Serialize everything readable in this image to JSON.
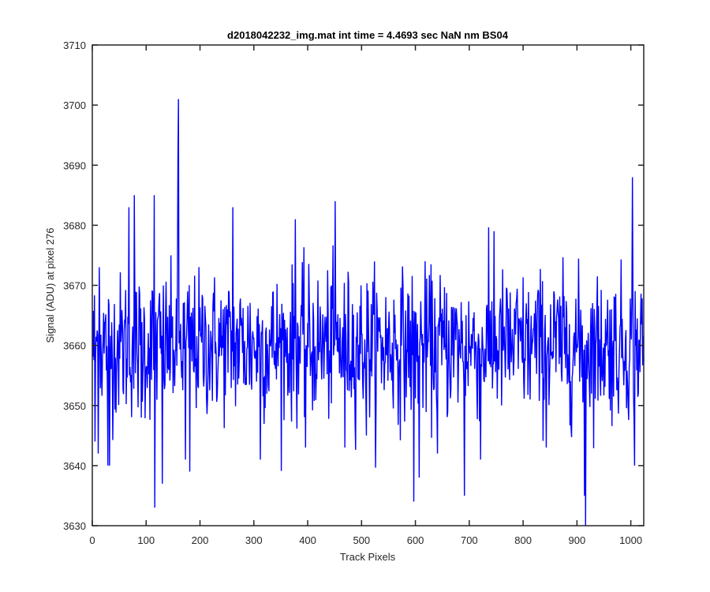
{
  "chart_data": {
    "type": "line",
    "title": "d2018042232_img.mat int time = 4.4693 sec  NaN nm BS04",
    "xlabel": "Track Pixels",
    "ylabel": "Signal (ADU) at pixel 276",
    "xlim": [
      0,
      1024
    ],
    "ylim": [
      3630,
      3710
    ],
    "xticks": [
      0,
      100,
      200,
      300,
      400,
      500,
      600,
      700,
      800,
      900,
      1000
    ],
    "yticks": [
      3630,
      3640,
      3650,
      3660,
      3670,
      3680,
      3690,
      3700,
      3710
    ],
    "grid": false,
    "legend": "none",
    "series": [
      {
        "color": "#0000ff",
        "n_points": 1024,
        "mean": 3660,
        "noise_std": 6,
        "notable_points": [
          {
            "x": 4,
            "y": 3644
          },
          {
            "x": 10,
            "y": 3642
          },
          {
            "x": 12,
            "y": 3673
          },
          {
            "x": 28,
            "y": 3640
          },
          {
            "x": 31,
            "y": 3640
          },
          {
            "x": 67,
            "y": 3683
          },
          {
            "x": 77,
            "y": 3685
          },
          {
            "x": 90,
            "y": 3648
          },
          {
            "x": 114,
            "y": 3685
          },
          {
            "x": 115,
            "y": 3633
          },
          {
            "x": 129,
            "y": 3637
          },
          {
            "x": 158,
            "y": 3691
          },
          {
            "x": 159,
            "y": 3701
          },
          {
            "x": 172,
            "y": 3641
          },
          {
            "x": 180,
            "y": 3639
          },
          {
            "x": 260,
            "y": 3683
          },
          {
            "x": 311,
            "y": 3641
          },
          {
            "x": 376,
            "y": 3681
          },
          {
            "x": 395,
            "y": 3643
          },
          {
            "x": 450,
            "y": 3684
          },
          {
            "x": 468,
            "y": 3643
          },
          {
            "x": 508,
            "y": 3645
          },
          {
            "x": 596,
            "y": 3634
          },
          {
            "x": 606,
            "y": 3638
          },
          {
            "x": 640,
            "y": 3642
          },
          {
            "x": 690,
            "y": 3635
          },
          {
            "x": 720,
            "y": 3641
          },
          {
            "x": 745,
            "y": 3679
          },
          {
            "x": 842,
            "y": 3643
          },
          {
            "x": 913,
            "y": 3635
          },
          {
            "x": 915,
            "y": 3630
          },
          {
            "x": 1002,
            "y": 3688
          },
          {
            "x": 1006,
            "y": 3640
          }
        ]
      }
    ]
  }
}
